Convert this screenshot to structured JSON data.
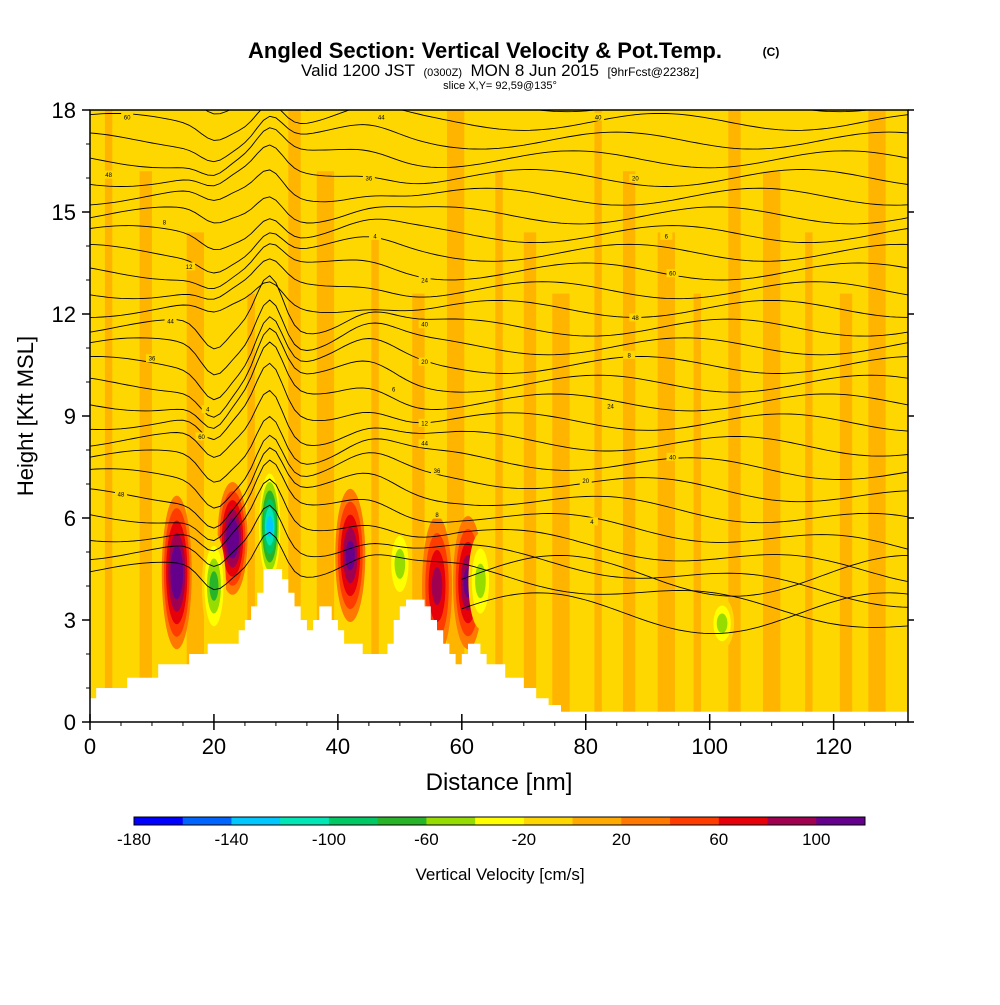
{
  "header": {
    "title": "Angled Section: Vertical Velocity & Pot.Temp.",
    "title_mark": "(C)",
    "line2_pre": "Valid 1200 JST",
    "line2_zulu": "(0300Z)",
    "line2_date": "MON 8 Jun 2015",
    "line2_run": "[9hrFcst@2238z]",
    "slice": "slice X,Y= 92,59@135°"
  },
  "chart_data": {
    "type": "heatmap",
    "xlabel": "Distance [nm]",
    "ylabel": "Height [Kft MSL]",
    "xlim": [
      0,
      132
    ],
    "ylim": [
      0,
      18
    ],
    "x_ticks": [
      "0",
      "20",
      "40",
      "60",
      "80",
      "100",
      "120"
    ],
    "y_ticks": [
      "0",
      "3",
      "6",
      "9",
      "12",
      "15",
      "18"
    ],
    "field": "vertical velocity (cm/s), filled contours",
    "background_value_range": [
      -20,
      20
    ],
    "updraft_cores": [
      {
        "x": 14,
        "bottom_kft": 2.2,
        "top_kft": 6.6,
        "peak_cm_s": 110
      },
      {
        "x": 23,
        "bottom_kft": 3.8,
        "top_kft": 7.0,
        "peak_cm_s": 110
      },
      {
        "x": 42,
        "bottom_kft": 3.0,
        "top_kft": 6.8,
        "peak_cm_s": 90
      },
      {
        "x": 56,
        "bottom_kft": 2.0,
        "top_kft": 6.0,
        "peak_cm_s": 70
      },
      {
        "x": 61,
        "bottom_kft": 2.2,
        "top_kft": 6.0,
        "peak_cm_s": 90
      }
    ],
    "downdraft_cores": [
      {
        "x": 20,
        "bottom_kft": 2.5,
        "top_kft": 5.5,
        "peak_cm_s": -80
      },
      {
        "x": 29,
        "bottom_kft": 4.0,
        "top_kft": 7.5,
        "peak_cm_s": -140
      },
      {
        "x": 50,
        "bottom_kft": 3.5,
        "top_kft": 5.8,
        "peak_cm_s": -60
      },
      {
        "x": 63,
        "bottom_kft": 2.8,
        "top_kft": 5.5,
        "peak_cm_s": -60
      },
      {
        "x": 102,
        "bottom_kft": 2.2,
        "top_kft": 3.6,
        "peak_cm_s": -50
      }
    ],
    "terrain_kft": [
      [
        0,
        0.7
      ],
      [
        1,
        1.0
      ],
      [
        5,
        1.0
      ],
      [
        6,
        1.3
      ],
      [
        10,
        1.3
      ],
      [
        11,
        1.7
      ],
      [
        15,
        1.7
      ],
      [
        16,
        2.0
      ],
      [
        18,
        2.0
      ],
      [
        19,
        2.3
      ],
      [
        23,
        2.3
      ],
      [
        24,
        2.7
      ],
      [
        25,
        3.0
      ],
      [
        26,
        3.4
      ],
      [
        27,
        3.8
      ],
      [
        28,
        4.5
      ],
      [
        30,
        4.5
      ],
      [
        31,
        4.2
      ],
      [
        32,
        3.8
      ],
      [
        33,
        3.4
      ],
      [
        34,
        3.0
      ],
      [
        35,
        2.7
      ],
      [
        36,
        3.0
      ],
      [
        37,
        3.4
      ],
      [
        38,
        3.4
      ],
      [
        39,
        3.0
      ],
      [
        40,
        2.7
      ],
      [
        41,
        2.3
      ],
      [
        43,
        2.3
      ],
      [
        44,
        2.0
      ],
      [
        47,
        2.0
      ],
      [
        48,
        2.3
      ],
      [
        49,
        3.0
      ],
      [
        50,
        3.4
      ],
      [
        51,
        3.6
      ],
      [
        53,
        3.6
      ],
      [
        54,
        3.4
      ],
      [
        55,
        3.0
      ],
      [
        56,
        2.7
      ],
      [
        57,
        2.3
      ],
      [
        58,
        2.0
      ],
      [
        59,
        1.7
      ],
      [
        60,
        2.0
      ],
      [
        61,
        2.3
      ],
      [
        62,
        2.3
      ],
      [
        63,
        2.0
      ],
      [
        64,
        1.7
      ],
      [
        66,
        1.7
      ],
      [
        67,
        1.3
      ],
      [
        69,
        1.3
      ],
      [
        70,
        1.0
      ],
      [
        72,
        0.7
      ],
      [
        74,
        0.5
      ],
      [
        76,
        0.3
      ],
      [
        132,
        0.3
      ]
    ],
    "theta_contour_labels": [
      "60",
      "44",
      "40",
      "48",
      "36",
      "20",
      "8",
      "4",
      "6",
      "12",
      "24"
    ],
    "colorbar": {
      "label": "Vertical Velocity [cm/s]",
      "tick_labels": [
        "-180",
        "-140",
        "-100",
        "-60",
        "-20",
        "20",
        "60",
        "100"
      ],
      "bins": [
        -180,
        -160,
        -140,
        -120,
        -100,
        -80,
        -60,
        -40,
        -20,
        0,
        20,
        40,
        60,
        80,
        100,
        120
      ],
      "colors": [
        "#0000ff",
        "#0064ff",
        "#00c8ff",
        "#00e6b4",
        "#00c864",
        "#28b428",
        "#96dc00",
        "#ffff00",
        "#ffd700",
        "#ffaa00",
        "#ff7800",
        "#ff3c00",
        "#e6000a",
        "#a00050",
        "#64008c"
      ]
    }
  }
}
